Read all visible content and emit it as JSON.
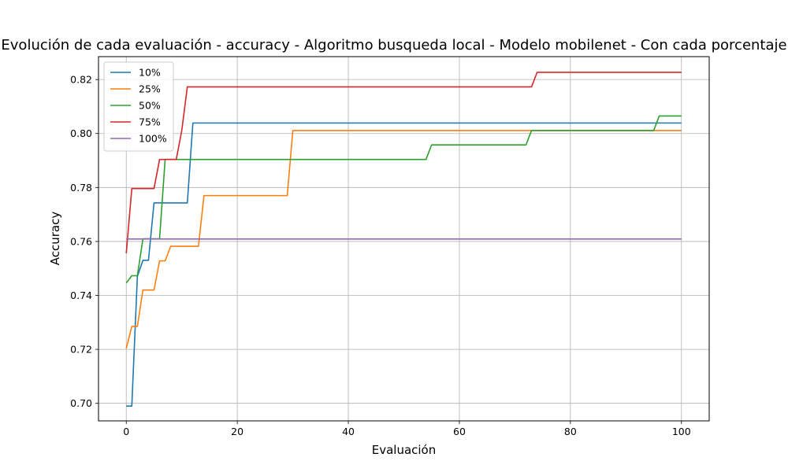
{
  "chart_data": {
    "type": "line",
    "title": "Evolución de cada evaluación - accuracy - Algoritmo busqueda local - Modelo mobilenet - Con cada porcentaje",
    "xlabel": "Evaluación",
    "ylabel": "Accuracy",
    "xlim": [
      -5,
      105
    ],
    "ylim": [
      0.6935,
      0.8285
    ],
    "xticks": [
      0,
      20,
      40,
      60,
      80,
      100
    ],
    "yticks": [
      0.7,
      0.72,
      0.74,
      0.76,
      0.78,
      0.8,
      0.82
    ],
    "grid": true,
    "legend_position": "top-left",
    "series": [
      {
        "name": "10%",
        "color": "#1f77b4",
        "points": [
          [
            0,
            0.699
          ],
          [
            1,
            0.699
          ],
          [
            2,
            0.747
          ],
          [
            3,
            0.753
          ],
          [
            4,
            0.753
          ],
          [
            5,
            0.7743
          ],
          [
            6,
            0.7743
          ],
          [
            11,
            0.7743
          ],
          [
            12,
            0.8039
          ],
          [
            100,
            0.8039
          ]
        ]
      },
      {
        "name": "25%",
        "color": "#ff7f0e",
        "points": [
          [
            0,
            0.7203
          ],
          [
            1,
            0.7285
          ],
          [
            2,
            0.7285
          ],
          [
            3,
            0.742
          ],
          [
            5,
            0.742
          ],
          [
            6,
            0.7528
          ],
          [
            7,
            0.7528
          ],
          [
            8,
            0.7582
          ],
          [
            13,
            0.7582
          ],
          [
            14,
            0.777
          ],
          [
            29,
            0.777
          ],
          [
            30,
            0.8011
          ],
          [
            100,
            0.8011
          ]
        ]
      },
      {
        "name": "50%",
        "color": "#2ca02c",
        "points": [
          [
            0,
            0.7446
          ],
          [
            1,
            0.7473
          ],
          [
            2,
            0.7473
          ],
          [
            3,
            0.761
          ],
          [
            6,
            0.761
          ],
          [
            7,
            0.7904
          ],
          [
            54,
            0.7904
          ],
          [
            55,
            0.7958
          ],
          [
            72,
            0.7958
          ],
          [
            73,
            0.8011
          ],
          [
            95,
            0.8011
          ],
          [
            96,
            0.8065
          ],
          [
            100,
            0.8065
          ]
        ]
      },
      {
        "name": "75%",
        "color": "#d62728",
        "points": [
          [
            0,
            0.7556
          ],
          [
            1,
            0.7796
          ],
          [
            5,
            0.7796
          ],
          [
            6,
            0.7904
          ],
          [
            9,
            0.7904
          ],
          [
            10,
            0.8011
          ],
          [
            11,
            0.8173
          ],
          [
            73,
            0.8173
          ],
          [
            74,
            0.8227
          ],
          [
            100,
            0.8227
          ]
        ]
      },
      {
        "name": "100%",
        "color": "#9467bd",
        "points": [
          [
            0,
            0.7609
          ],
          [
            100,
            0.7609
          ]
        ]
      }
    ]
  }
}
